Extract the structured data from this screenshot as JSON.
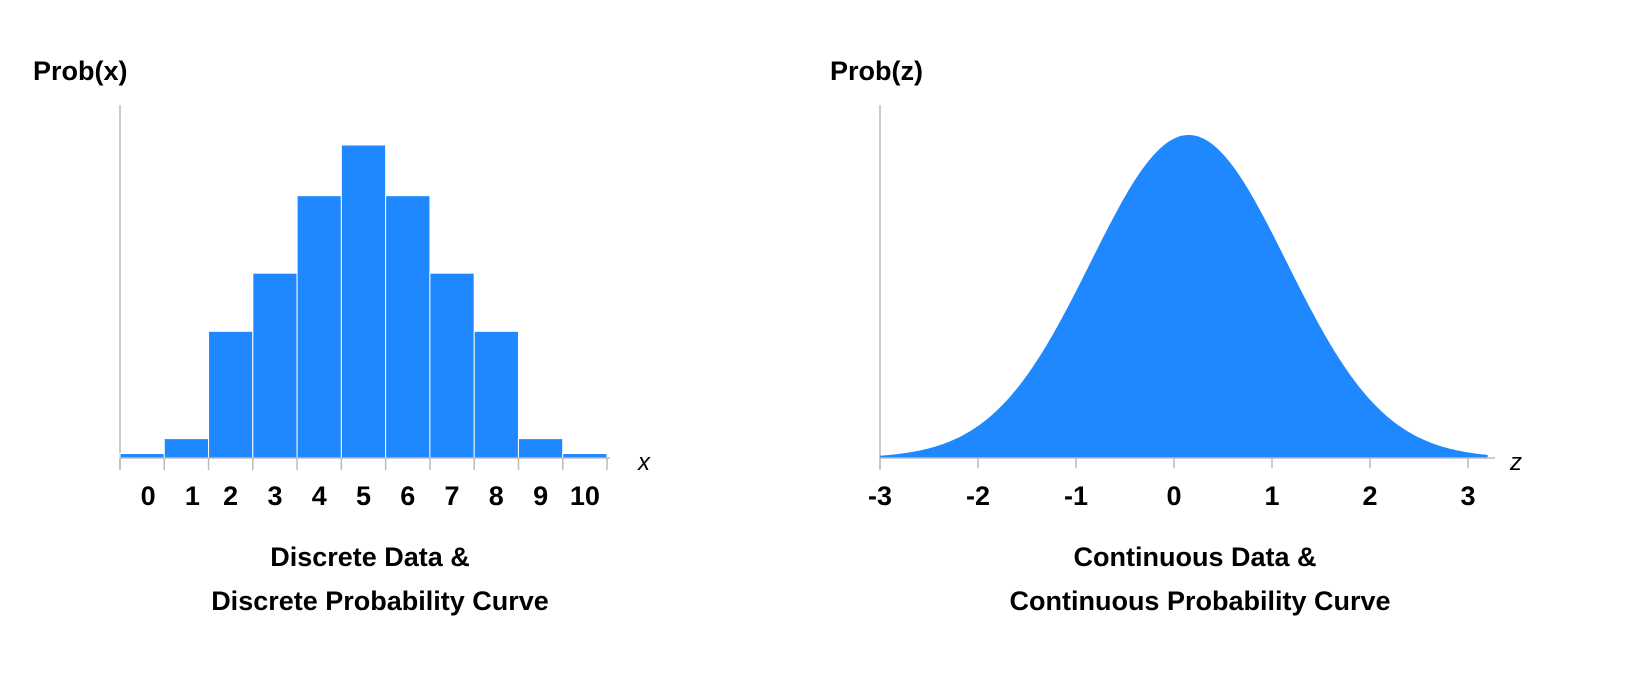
{
  "colors": {
    "fill": "#2088FF",
    "axis": "#BBBBBB",
    "bar_border": "#FFFFFF"
  },
  "chart_data": [
    {
      "type": "bar",
      "title_lines": [
        "Discrete Data &",
        "Discrete Probability Curve"
      ],
      "ylabel": "Prob(x)",
      "xlabel": "x",
      "categories": [
        "0",
        "1",
        "2",
        "3",
        "4",
        "5",
        "6",
        "7",
        "8",
        "9",
        "10"
      ],
      "values": [
        0.003,
        0.013,
        0.085,
        0.124,
        0.176,
        0.21,
        0.176,
        0.124,
        0.085,
        0.013,
        0.003
      ],
      "ylim": [
        0,
        0.215
      ],
      "grid": false
    },
    {
      "type": "area",
      "title_lines": [
        "Continuous Data &",
        "Continuous Probability Curve"
      ],
      "ylabel": "Prob(z)",
      "xlabel": "z",
      "xticks": [
        "-3",
        "-2",
        "-1",
        "0",
        "1",
        "2",
        "3"
      ],
      "xlim": [
        -3,
        3.2
      ],
      "curve": {
        "kind": "normal",
        "mean": 0.15,
        "sd": 1
      },
      "ylim": [
        0,
        0.41
      ],
      "grid": false
    }
  ]
}
